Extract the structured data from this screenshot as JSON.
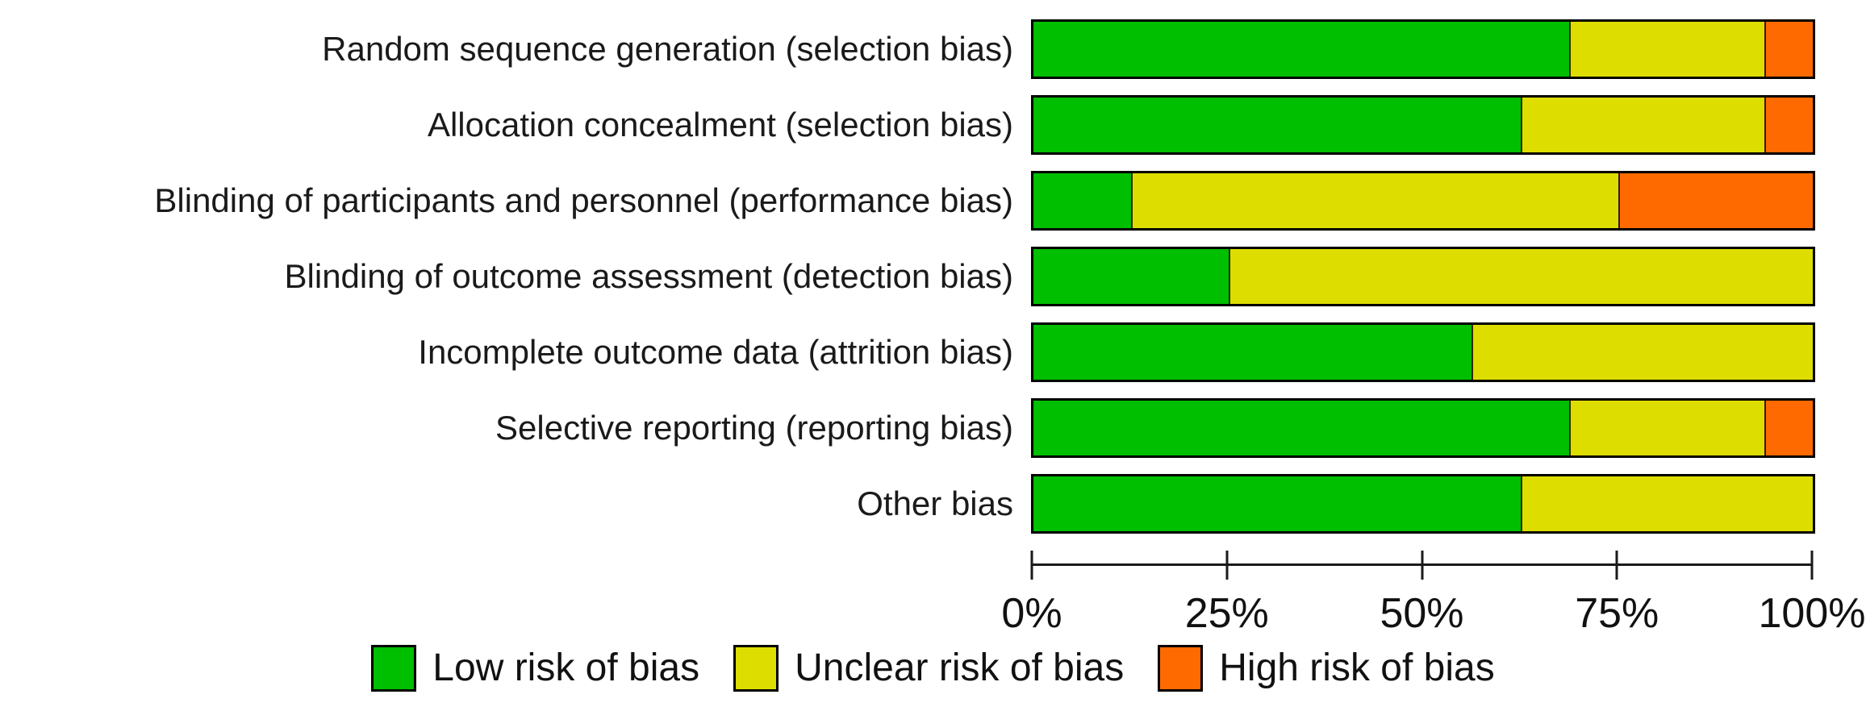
{
  "figure": {
    "background": "#ffffff",
    "text_color": "#111111"
  },
  "chart_data": {
    "type": "bar",
    "orientation": "horizontal",
    "stacked": true,
    "unit": "percent_of_studies",
    "title": "",
    "xlabel": "",
    "ylabel": "",
    "x_range": [
      0,
      100
    ],
    "grid": false,
    "legend_position": "bottom",
    "categories": [
      "Random sequence generation (selection bias)",
      "Allocation concealment (selection bias)",
      "Blinding of participants and personnel (performance bias)",
      "Blinding of outcome assessment (detection bias)",
      "Incomplete outcome data (attrition bias)",
      "Selective reporting (reporting bias)",
      "Other bias"
    ],
    "series": [
      {
        "name": "Low risk of bias",
        "color": "#00BE00",
        "values": [
          68.75,
          62.5,
          12.5,
          25,
          56.25,
          68.75,
          62.5
        ]
      },
      {
        "name": "Unclear risk of bias",
        "color": "#DEDD00",
        "values": [
          25,
          31.25,
          62.5,
          75,
          43.75,
          25,
          37.5
        ]
      },
      {
        "name": "High risk of bias",
        "color": "#FF6A00",
        "values": [
          6.25,
          6.25,
          25,
          0,
          0,
          6.25,
          0
        ]
      }
    ],
    "x_axis": {
      "ticks": [
        "0%",
        "25%",
        "50%",
        "75%",
        "100%"
      ],
      "tick_values": [
        0,
        25,
        50,
        75,
        100
      ]
    }
  }
}
